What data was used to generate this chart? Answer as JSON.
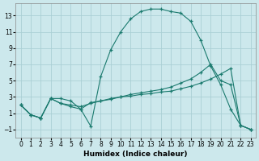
{
  "xlabel": "Humidex (Indice chaleur)",
  "bg_color": "#cce8ec",
  "grid_color": "#aacfd5",
  "line_color": "#1a7a6e",
  "xlim": [
    -0.5,
    23.5
  ],
  "ylim": [
    -2.0,
    14.5
  ],
  "yticks": [
    -1,
    1,
    3,
    5,
    7,
    9,
    11,
    13
  ],
  "xticks": [
    0,
    1,
    2,
    3,
    4,
    5,
    6,
    7,
    8,
    9,
    10,
    11,
    12,
    13,
    14,
    15,
    16,
    17,
    18,
    19,
    20,
    21,
    22,
    23
  ],
  "series1_x": [
    0,
    1,
    2,
    3,
    4,
    5,
    6,
    7,
    8,
    9,
    10,
    11,
    12,
    13,
    14,
    15,
    16,
    17,
    18,
    19,
    20,
    21,
    22,
    23
  ],
  "series1_y": [
    2.0,
    0.8,
    0.4,
    2.8,
    2.8,
    2.5,
    1.5,
    -0.6,
    5.5,
    8.8,
    11.0,
    12.6,
    13.5,
    13.8,
    13.8,
    13.5,
    13.3,
    12.3,
    10.0,
    6.8,
    4.5,
    1.5,
    -0.5,
    -1.0
  ],
  "series2_x": [
    0,
    1,
    2,
    3,
    4,
    5,
    6,
    7,
    8,
    9,
    10,
    11,
    12,
    13,
    14,
    15,
    16,
    17,
    18,
    19,
    20,
    21,
    22,
    23
  ],
  "series2_y": [
    2.0,
    0.8,
    0.4,
    2.8,
    2.2,
    1.8,
    1.5,
    2.3,
    2.5,
    2.7,
    3.0,
    3.3,
    3.5,
    3.7,
    3.9,
    4.2,
    4.7,
    5.2,
    6.0,
    7.0,
    5.0,
    4.5,
    -0.5,
    -1.0
  ],
  "series3_x": [
    0,
    1,
    2,
    3,
    4,
    5,
    6,
    7,
    8,
    9,
    10,
    11,
    12,
    13,
    14,
    15,
    16,
    17,
    18,
    19,
    20,
    21,
    22,
    23
  ],
  "series3_y": [
    2.0,
    0.8,
    0.4,
    2.8,
    2.2,
    2.0,
    1.8,
    2.2,
    2.5,
    2.8,
    3.0,
    3.1,
    3.3,
    3.4,
    3.6,
    3.7,
    4.0,
    4.3,
    4.7,
    5.2,
    5.8,
    6.5,
    -0.5,
    -1.0
  ]
}
